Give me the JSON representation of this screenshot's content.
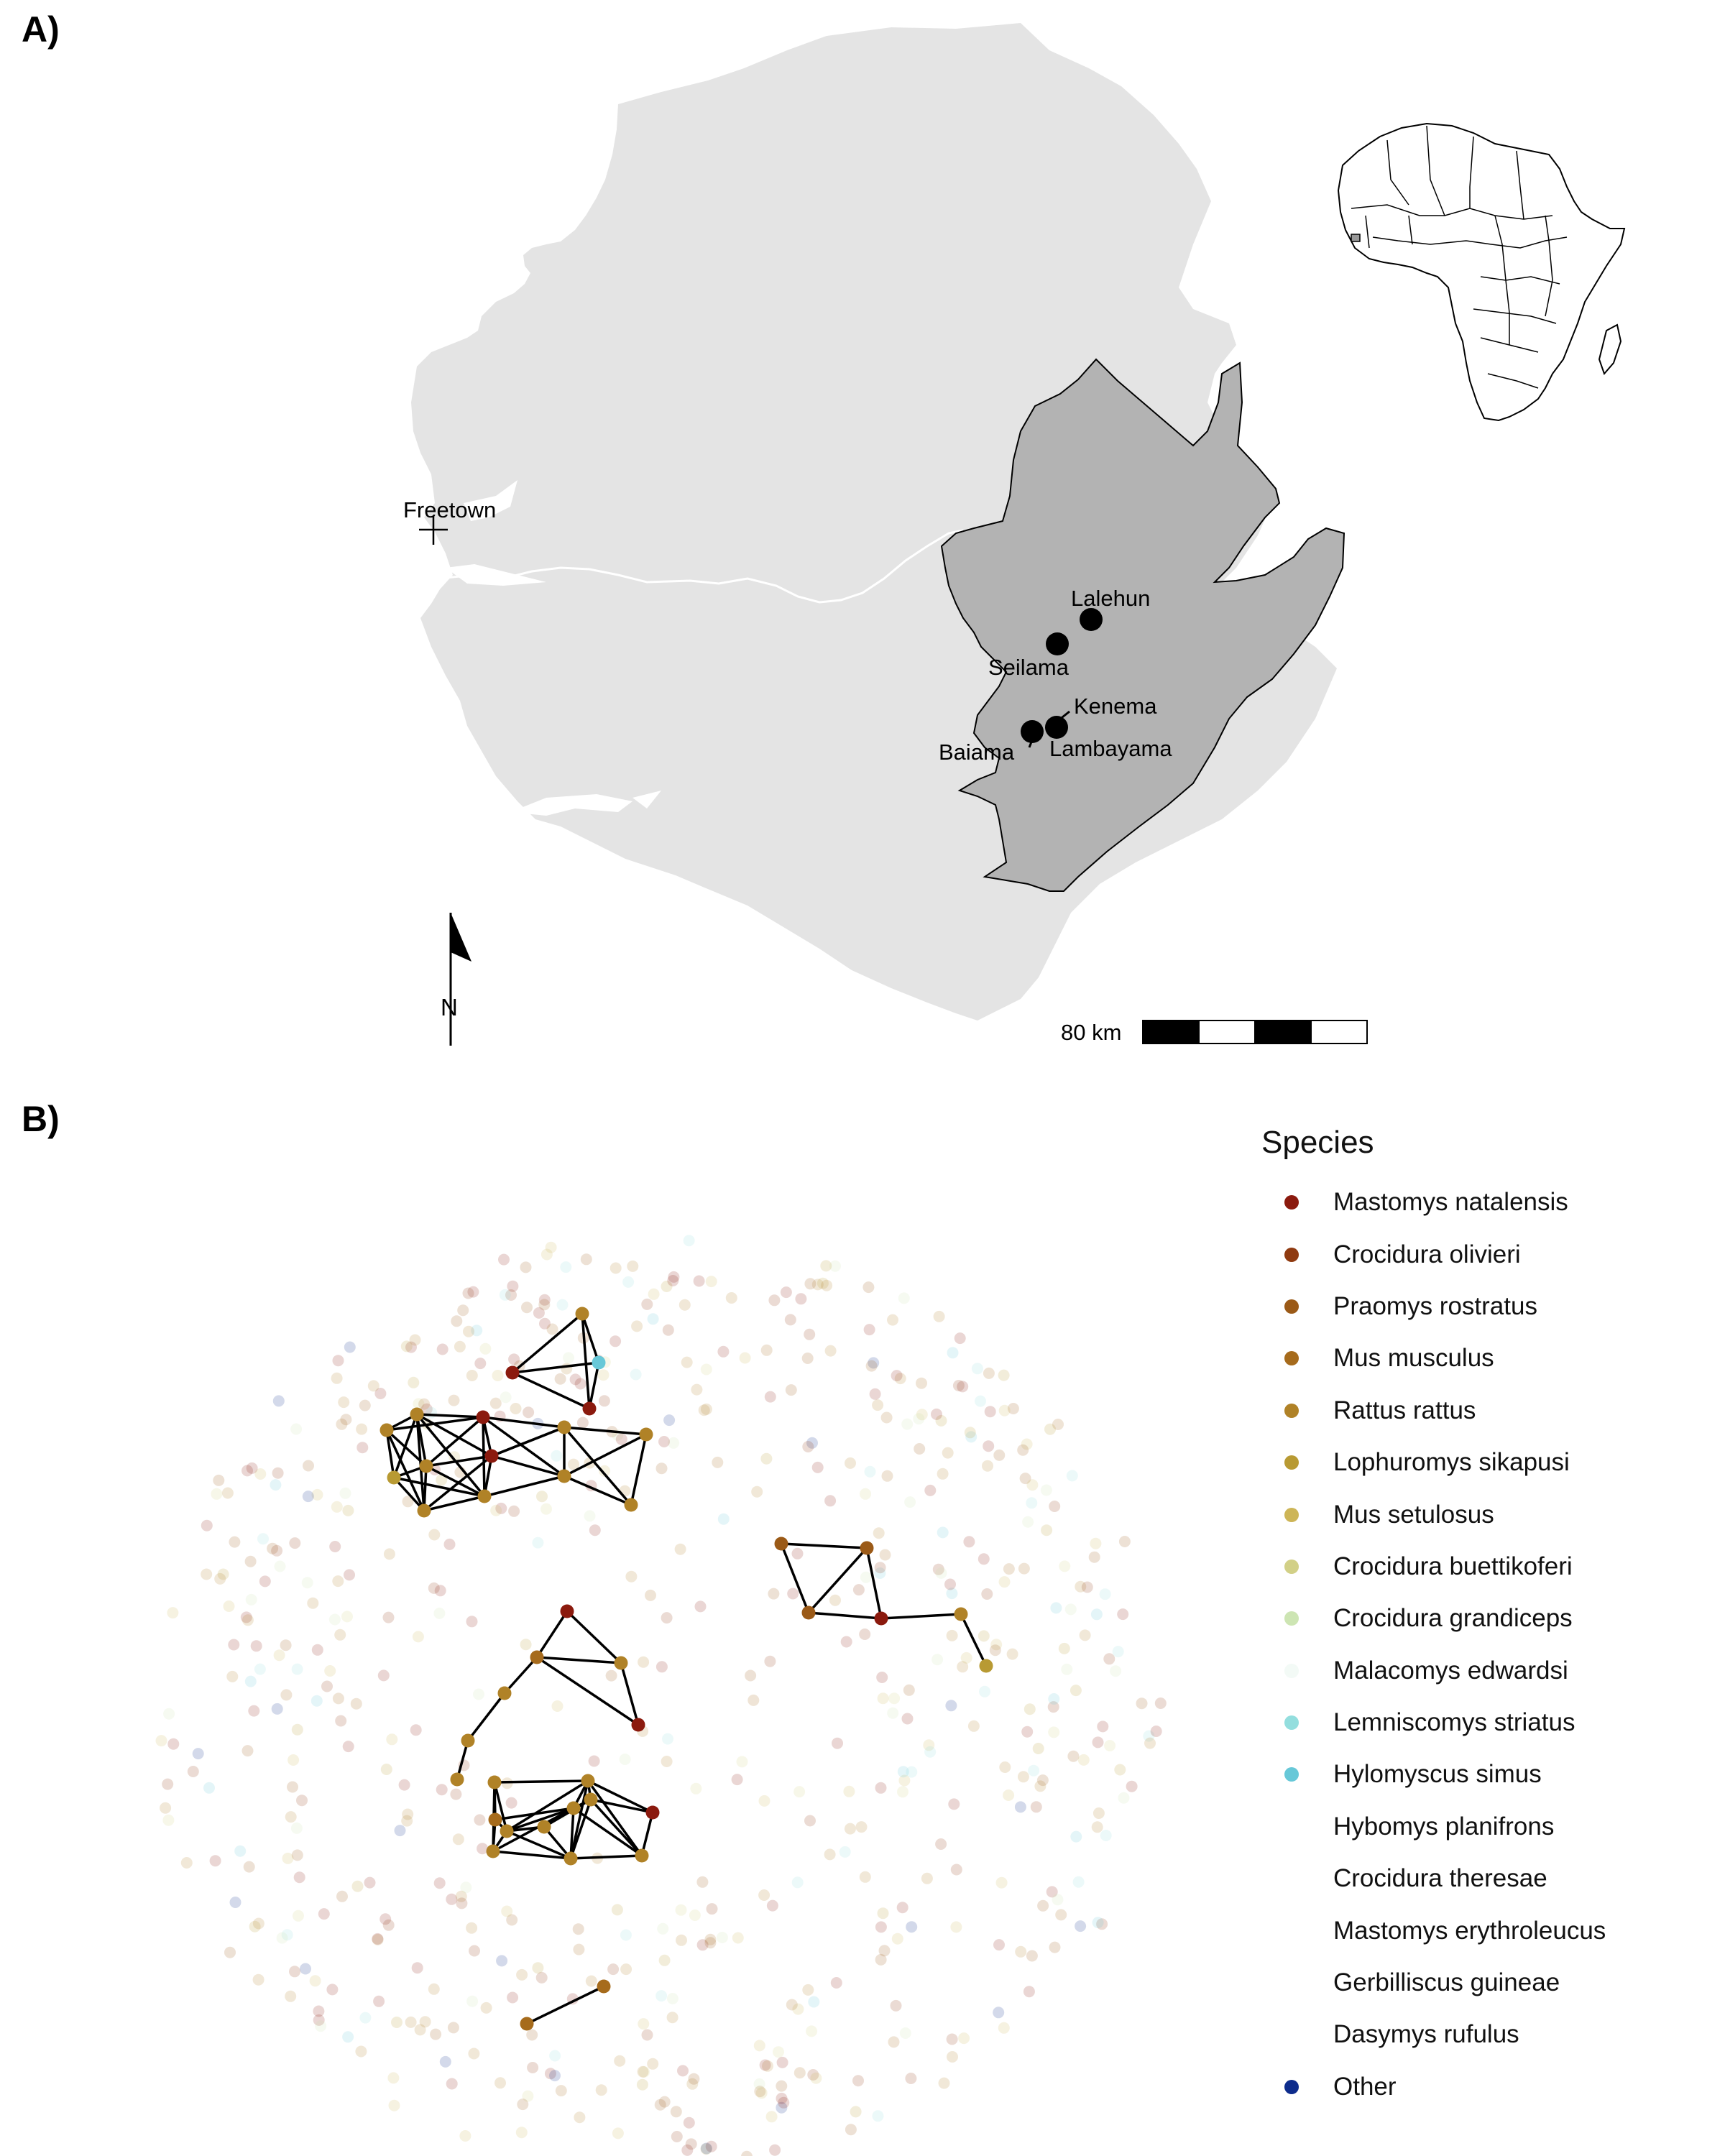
{
  "panels": {
    "a": "A)",
    "b": "B)"
  },
  "map": {
    "colors": {
      "country": "#e4e4e4",
      "region": "#b3b3b3",
      "border": "#ffffff",
      "sites": "#000000"
    },
    "capital": {
      "name": "Freetown",
      "icon": "plus-cross-icon"
    },
    "sites": [
      {
        "name": "Lalehun"
      },
      {
        "name": "Seilama"
      },
      {
        "name": "Kenema"
      },
      {
        "name": "Baiama"
      },
      {
        "name": "Lambayama"
      }
    ],
    "north_arrow": {
      "label": "N",
      "icon": "north-arrow-icon"
    },
    "scale_bar": {
      "label": "80 km"
    },
    "inset": {
      "icon": "africa-outline-icon"
    }
  },
  "network": {
    "legend": {
      "title": "Species",
      "items": [
        {
          "label": "Mastomys natalensis",
          "color": "#8b1a0e"
        },
        {
          "label": "Crocidura olivieri",
          "color": "#8f3a10"
        },
        {
          "label": "Praomys rostratus",
          "color": "#9b5a17"
        },
        {
          "label": "Mus musculus",
          "color": "#a66b1c"
        },
        {
          "label": "Rattus rattus",
          "color": "#b08227"
        },
        {
          "label": "Lophuromys sikapusi",
          "color": "#b89a33"
        },
        {
          "label": "Mus setulosus",
          "color": "#cdb557"
        },
        {
          "label": "Crocidura buettikoferi",
          "color": "#d2d087"
        },
        {
          "label": "Crocidura grandiceps",
          "color": "#cde5b3"
        },
        {
          "label": "Malacomys edwardsi",
          "color": "#f3faf6"
        },
        {
          "label": "Lemniscomys striatus",
          "color": "#93dede"
        },
        {
          "label": "Hylomyscus simus",
          "color": "#67c8d8"
        },
        {
          "label": "Hybomys planifrons",
          "color": "#ffffff"
        },
        {
          "label": "Crocidura theresae",
          "color": "#ffffff"
        },
        {
          "label": "Mastomys erythroleucus",
          "color": "#ffffff"
        },
        {
          "label": "Gerbilliscus guineae",
          "color": "#ffffff"
        },
        {
          "label": "Dasymys rufulus",
          "color": "#ffffff"
        },
        {
          "label": "Other",
          "color": "#0d2c8c"
        }
      ]
    },
    "background_node_count": 620,
    "background_opacity": 0.18,
    "edge_color": "#000000"
  }
}
